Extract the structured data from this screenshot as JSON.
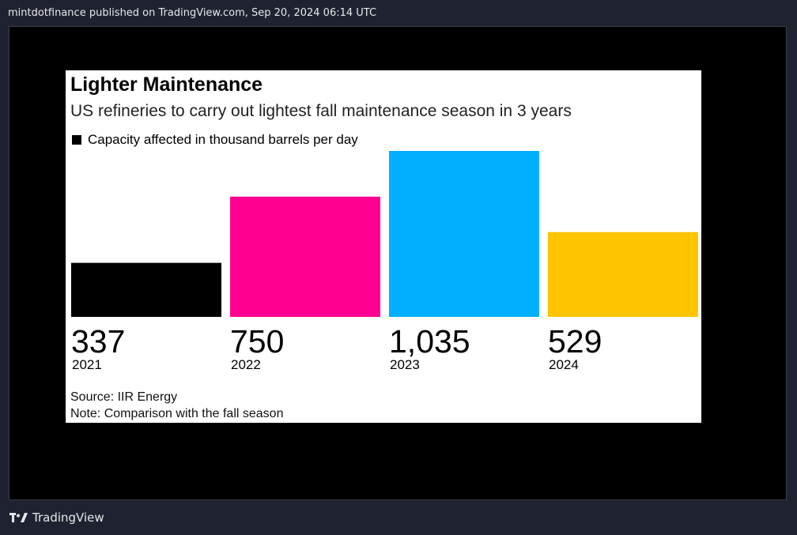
{
  "header": {
    "publish_line": "mintdotfinance published on TradingView.com, Sep 20, 2024 06:14 UTC"
  },
  "footer": {
    "brand": "TradingView"
  },
  "colors": {
    "page_bg": "#1f2230",
    "frame_bg": "#000000",
    "card_bg": "#ffffff"
  },
  "chart_data": {
    "type": "bar",
    "title": "Lighter Maintenance",
    "subtitle": "US refineries to carry out lightest fall maintenance season in 3 years",
    "legend": "Capacity affected in thousand barrels per day",
    "categories": [
      "2021",
      "2022",
      "2023",
      "2024"
    ],
    "values": [
      337,
      750,
      1035,
      529
    ],
    "value_labels": [
      "337",
      "750",
      "1,035",
      "529"
    ],
    "bar_colors": [
      "#000000",
      "#ff0090",
      "#00b0ff",
      "#ffc400"
    ],
    "ylim": [
      0,
      1035
    ],
    "grid": false,
    "source": "Source: IIR Energy",
    "note": "Note: Comparison with the fall season"
  }
}
